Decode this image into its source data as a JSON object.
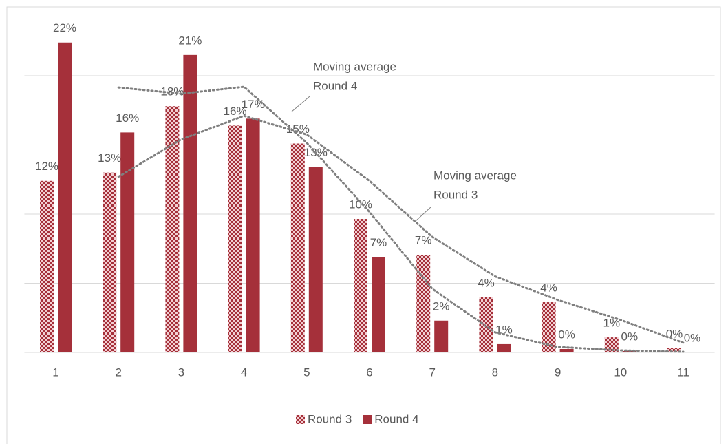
{
  "chart_data": {
    "type": "bar",
    "categories": [
      "1",
      "2",
      "3",
      "4",
      "5",
      "6",
      "7",
      "8",
      "9",
      "10",
      "11"
    ],
    "series": [
      {
        "name": "Round 3",
        "color": "#a5303a",
        "pattern": "checker",
        "values": [
          12.4,
          13.0,
          17.8,
          16.4,
          15.1,
          9.65,
          7.06,
          3.98,
          3.63,
          1.09,
          0.3
        ],
        "value_labels": [
          "12%",
          "13%",
          "18%",
          "16%",
          "15%",
          "10%",
          "7%",
          "4%",
          "4%",
          "1%",
          "0%"
        ]
      },
      {
        "name": "Round 4",
        "color": "#a5303a",
        "values": [
          22.4,
          15.9,
          21.5,
          16.9,
          13.4,
          6.9,
          2.3,
          0.6,
          0.25,
          0.1,
          0
        ],
        "value_labels": [
          "22%",
          "16%",
          "21%",
          "17%",
          "13%",
          "7%",
          "2%",
          "1%",
          "0%",
          "0%",
          "0%"
        ]
      }
    ],
    "trendlines": [
      {
        "color": "#7f7f7f",
        "values": [
          null,
          12.7,
          15.4,
          17.1,
          15.75,
          12.4,
          8.35,
          5.5,
          3.8,
          2.35,
          0.7
        ]
      },
      {
        "color": "#7f7f7f",
        "values": [
          null,
          19.15,
          18.7,
          19.2,
          15.15,
          10.15,
          4.6,
          1.45,
          0.4,
          0.15,
          0.05
        ]
      }
    ],
    "annotations": [
      {
        "lines": [
          "Moving average",
          "Round 4"
        ]
      },
      {
        "lines": [
          "Moving average",
          "Round 3"
        ]
      }
    ],
    "ylim": [
      0,
      25
    ],
    "yticks": [
      0,
      5,
      10,
      15,
      20
    ],
    "grid": true,
    "legend": "bottom"
  }
}
